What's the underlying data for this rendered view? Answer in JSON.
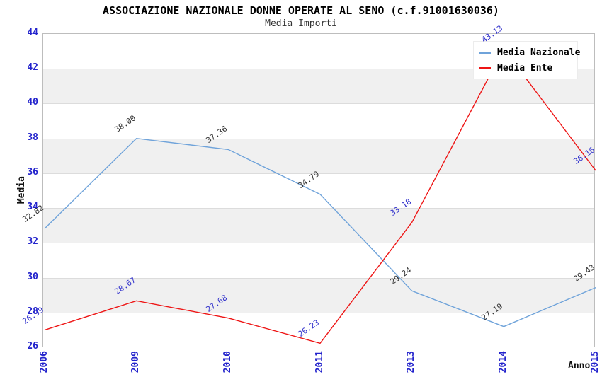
{
  "header": {
    "title": "ASSOCIAZIONE NAZIONALE DONNE OPERATE AL SENO (c.f.91001630036)",
    "subtitle": "Media Importi"
  },
  "chart_data": {
    "type": "line",
    "title": "ASSOCIAZIONE NAZIONALE DONNE OPERATE AL SENO (c.f.91001630036)",
    "subtitle": "Media Importi",
    "categories": [
      "2006",
      "2009",
      "2010",
      "2011",
      "2013",
      "2014",
      "2015"
    ],
    "series": [
      {
        "name": "Media Nazionale",
        "color": "#6fa3da",
        "label_color": "#333333",
        "values": [
          32.82,
          38.0,
          37.36,
          34.79,
          29.24,
          27.19,
          29.43
        ],
        "labels": [
          "32.82",
          "38.00",
          "37.36",
          "34.79",
          "29.24",
          "27.19",
          "29.43"
        ]
      },
      {
        "name": "Media Ente",
        "color": "#ee1515",
        "label_color": "#3333cc",
        "values": [
          26.99,
          28.67,
          27.68,
          26.23,
          33.18,
          43.13,
          36.16
        ],
        "labels": [
          "26.99",
          "28.67",
          "27.68",
          "26.23",
          "33.18",
          "43.13",
          "36.16"
        ]
      }
    ],
    "xlabel": "Anno",
    "ylabel": "Media",
    "ylim": [
      26,
      44
    ],
    "ytick_step": 2,
    "grid": true,
    "legend_position": "top-right",
    "band_colors": [
      "#ffffff",
      "#f0f0f0"
    ],
    "axis_tick_color": "#2323cc"
  }
}
